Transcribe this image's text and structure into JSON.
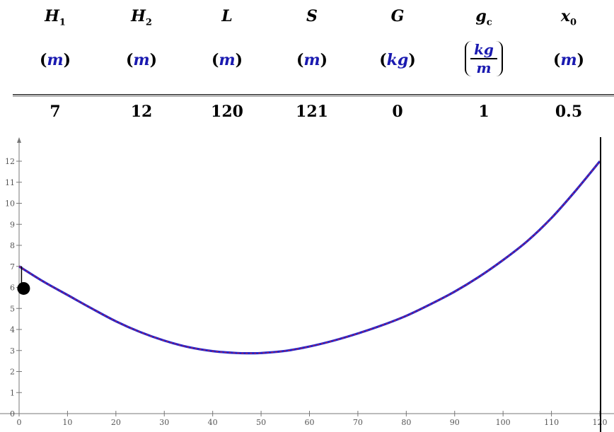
{
  "parameters": [
    {
      "symbol": "H",
      "sub": "1",
      "unit": "m",
      "value": "7"
    },
    {
      "symbol": "H",
      "sub": "2",
      "unit": "m",
      "value": "12"
    },
    {
      "symbol": "L",
      "sub": "",
      "unit": "m",
      "value": "120"
    },
    {
      "symbol": "S",
      "sub": "",
      "unit": "m",
      "value": "121"
    },
    {
      "symbol": "G",
      "sub": "",
      "unit": "kg",
      "value": "0"
    },
    {
      "symbol": "g",
      "sub": "c",
      "unit_num": "kg",
      "unit_den": "m",
      "value": "1"
    },
    {
      "symbol": "x",
      "sub": "0",
      "unit": "m",
      "value": "0.5"
    }
  ],
  "chart_data": {
    "type": "line",
    "title": "",
    "xlabel": "",
    "ylabel": "",
    "xlim": [
      0,
      120
    ],
    "ylim": [
      0,
      12
    ],
    "x_ticks": [
      0,
      10,
      20,
      30,
      40,
      50,
      60,
      70,
      80,
      90,
      100,
      110,
      120
    ],
    "y_ticks": [
      0,
      1,
      2,
      3,
      4,
      5,
      6,
      7,
      8,
      9,
      10,
      11,
      12
    ],
    "grid": false,
    "series": [
      {
        "color": "#2222cc",
        "dash_color": "#dd2222",
        "x": [
          0,
          5,
          10,
          15,
          20,
          25,
          30,
          35,
          40,
          45,
          48,
          50,
          55,
          60,
          65,
          70,
          75,
          80,
          85,
          90,
          95,
          100,
          105,
          110,
          115,
          120
        ],
        "y": [
          7.0,
          6.28,
          5.64,
          5.0,
          4.39,
          3.88,
          3.47,
          3.16,
          2.97,
          2.88,
          2.87,
          2.88,
          2.98,
          3.19,
          3.47,
          3.81,
          4.2,
          4.65,
          5.2,
          5.8,
          6.5,
          7.3,
          8.2,
          9.3,
          10.6,
          12.0
        ]
      }
    ],
    "load_marker": {
      "x": 0.5,
      "y": 5.95,
      "color": "#000000"
    },
    "hanger": {
      "x": 0.5,
      "y_top": 7.0,
      "y_bottom": 5.95
    },
    "vertical_line": {
      "x": 120,
      "color": "#000000"
    }
  }
}
